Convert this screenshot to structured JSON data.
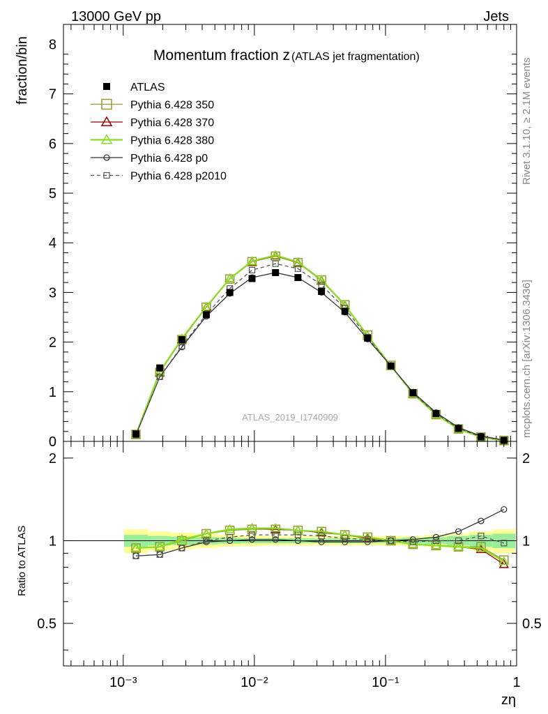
{
  "header": {
    "energy_label": "13000 GeV pp",
    "category_label": "Jets"
  },
  "side_labels": {
    "rivet": "Rivet 3.1.10, ≥ 2.1M events",
    "site": "mcplots.cern.ch [arXiv:1306.3436]"
  },
  "watermark": "ATLAS_2019_I1740909",
  "colors": {
    "data": "#000000",
    "p350": "#999933",
    "p370": "#990000",
    "p380": "#88dd22",
    "p0": "#333333",
    "p2010": "#555555",
    "band_yellow": "#ffff99",
    "band_green": "#99ee99"
  },
  "chart_data": [
    {
      "type": "line",
      "title": "Momentum fraction z",
      "title_suffix": "(ATLAS jet fragmentation)",
      "ylabel": "fraction/bin",
      "xlabel": "zη",
      "xscale": "log",
      "xlim": [
        0.00035,
        1.0
      ],
      "ylim": [
        0,
        8.4
      ],
      "yticks": [
        0,
        1,
        2,
        3,
        4,
        5,
        6,
        7,
        8
      ],
      "xticks": [
        "10⁻³",
        "10⁻²",
        "10⁻¹",
        "1"
      ],
      "legend_position": "top-left",
      "x": [
        0.00125,
        0.0019,
        0.0028,
        0.0043,
        0.0065,
        0.0096,
        0.0145,
        0.0215,
        0.0325,
        0.049,
        0.073,
        0.11,
        0.162,
        0.243,
        0.36,
        0.535,
        0.8
      ],
      "series": [
        {
          "name": "ATLAS",
          "color_key": "data",
          "marker": "filled-square",
          "values": [
            0.15,
            1.48,
            2.05,
            2.55,
            3.0,
            3.28,
            3.4,
            3.3,
            3.02,
            2.62,
            2.08,
            1.52,
            0.98,
            0.56,
            0.26,
            0.09,
            0.02
          ]
        },
        {
          "name": "Pythia 6.428 350",
          "color_key": "p350",
          "marker": "open-square",
          "values": [
            0.14,
            1.39,
            2.05,
            2.7,
            3.27,
            3.62,
            3.73,
            3.6,
            3.25,
            2.75,
            2.14,
            1.53,
            0.96,
            0.54,
            0.25,
            0.085,
            0.017
          ]
        },
        {
          "name": "Pythia 6.428 370",
          "color_key": "p370",
          "marker": "open-triangle",
          "values": [
            0.14,
            1.39,
            2.06,
            2.7,
            3.28,
            3.62,
            3.74,
            3.6,
            3.24,
            2.74,
            2.13,
            1.52,
            0.96,
            0.54,
            0.25,
            0.084,
            0.016
          ]
        },
        {
          "name": "Pythia 6.428 380",
          "color_key": "p380",
          "marker": "open-triangle",
          "values": [
            0.14,
            1.4,
            2.07,
            2.71,
            3.28,
            3.63,
            3.75,
            3.61,
            3.25,
            2.75,
            2.13,
            1.52,
            0.96,
            0.54,
            0.25,
            0.085,
            0.017
          ]
        },
        {
          "name": "Pythia 6.428 p0",
          "color_key": "p0",
          "marker": "open-circle",
          "values": [
            0.13,
            1.3,
            1.9,
            2.52,
            2.98,
            3.3,
            3.4,
            3.3,
            3.0,
            2.6,
            2.06,
            1.52,
            0.99,
            0.58,
            0.28,
            0.108,
            0.026
          ]
        },
        {
          "name": "Pythia 6.428 p2010",
          "color_key": "p2010",
          "marker": "open-square-dashed",
          "values": [
            0.13,
            1.3,
            1.92,
            2.56,
            3.08,
            3.45,
            3.58,
            3.48,
            3.15,
            2.68,
            2.1,
            1.52,
            0.97,
            0.56,
            0.26,
            0.094,
            0.02
          ]
        }
      ]
    },
    {
      "type": "line",
      "ylabel": "Ratio to ATLAS",
      "xscale": "log",
      "xlim": [
        0.00035,
        1.0
      ],
      "ylim": [
        0.35,
        2.3
      ],
      "yticks": [
        0.5,
        1,
        2
      ],
      "reference_line": 1,
      "band_yellow_halfwidth": [
        0.1,
        0.08,
        0.07,
        0.06,
        0.05,
        0.045,
        0.04,
        0.04,
        0.04,
        0.04,
        0.04,
        0.04,
        0.04,
        0.05,
        0.06,
        0.08,
        0.1
      ],
      "band_green_halfwidth": [
        0.05,
        0.04,
        0.035,
        0.03,
        0.025,
        0.02,
        0.02,
        0.02,
        0.02,
        0.02,
        0.02,
        0.02,
        0.025,
        0.03,
        0.04,
        0.05,
        0.06
      ],
      "x": [
        0.00125,
        0.0019,
        0.0028,
        0.0043,
        0.0065,
        0.0096,
        0.0145,
        0.0215,
        0.0325,
        0.049,
        0.073,
        0.11,
        0.162,
        0.243,
        0.36,
        0.535,
        0.8
      ],
      "series": [
        {
          "name": "Pythia 6.428 350",
          "color_key": "p350",
          "marker": "open-square",
          "values": [
            0.94,
            0.95,
            1.0,
            1.06,
            1.09,
            1.1,
            1.1,
            1.09,
            1.08,
            1.05,
            1.03,
            1.0,
            0.97,
            0.96,
            0.95,
            0.95,
            0.85
          ]
        },
        {
          "name": "Pythia 6.428 370",
          "color_key": "p370",
          "marker": "open-triangle",
          "values": [
            0.94,
            0.95,
            1.01,
            1.06,
            1.1,
            1.11,
            1.1,
            1.09,
            1.07,
            1.05,
            1.02,
            1.0,
            0.97,
            0.96,
            0.95,
            0.93,
            0.82
          ]
        },
        {
          "name": "Pythia 6.428 380",
          "color_key": "p380",
          "marker": "open-triangle",
          "values": [
            0.94,
            0.95,
            1.01,
            1.06,
            1.1,
            1.11,
            1.11,
            1.09,
            1.08,
            1.05,
            1.03,
            1.0,
            0.97,
            0.96,
            0.95,
            0.94,
            0.84
          ]
        },
        {
          "name": "Pythia 6.428 p0",
          "color_key": "p0",
          "marker": "open-circle",
          "values": [
            0.88,
            0.89,
            0.94,
            0.99,
            1.0,
            1.01,
            1.01,
            1.0,
            0.99,
            0.99,
            0.99,
            1.0,
            1.01,
            1.03,
            1.08,
            1.18,
            1.3
          ]
        },
        {
          "name": "Pythia 6.428 p2010",
          "color_key": "p2010",
          "marker": "open-square-dashed",
          "values": [
            0.88,
            0.89,
            0.94,
            1.0,
            1.03,
            1.05,
            1.05,
            1.05,
            1.04,
            1.02,
            1.01,
            1.0,
            0.99,
            1.0,
            1.0,
            1.04,
            0.98
          ]
        }
      ]
    }
  ]
}
